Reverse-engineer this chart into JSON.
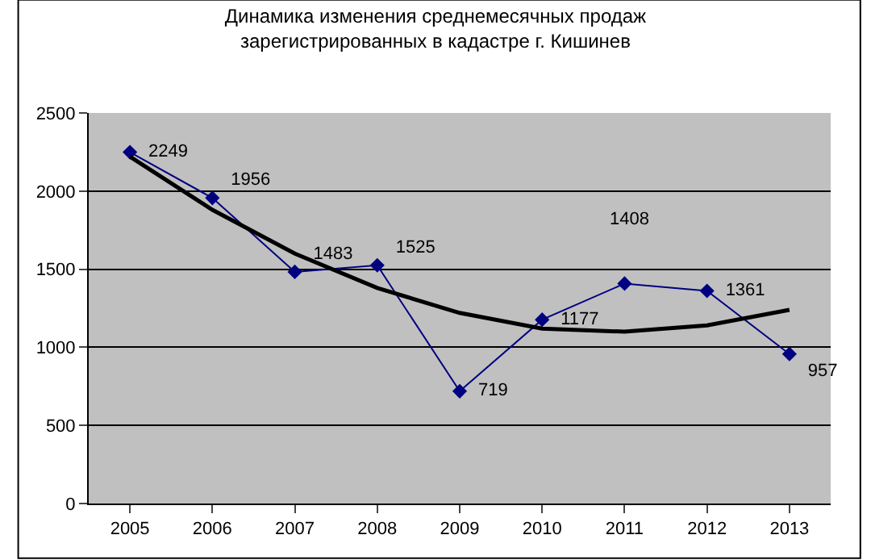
{
  "chart_data": {
    "type": "line",
    "title": "Динамика изменения среднемесячных продаж\nзарегистрированных в кадастре г. Кишинев",
    "categories": [
      "2005",
      "2006",
      "2007",
      "2008",
      "2009",
      "2010",
      "2011",
      "2012",
      "2013"
    ],
    "series": [
      {
        "color": "#000080",
        "marker": "diamond",
        "values": [
          2249,
          1956,
          1483,
          1525,
          719,
          1177,
          1408,
          1361,
          957
        ],
        "value_labels": [
          "2249",
          "1956",
          "1483",
          "1525",
          "719",
          "1177",
          "1408",
          "1361",
          "957"
        ]
      },
      {
        "color": "#000000",
        "marker": "none",
        "values": [
          2220,
          1880,
          1600,
          1380,
          1220,
          1120,
          1100,
          1140,
          1240
        ]
      }
    ],
    "ylim": [
      0,
      2500
    ],
    "yticks": [
      0,
      500,
      1000,
      1500,
      2000,
      2500
    ],
    "grid": "y"
  }
}
